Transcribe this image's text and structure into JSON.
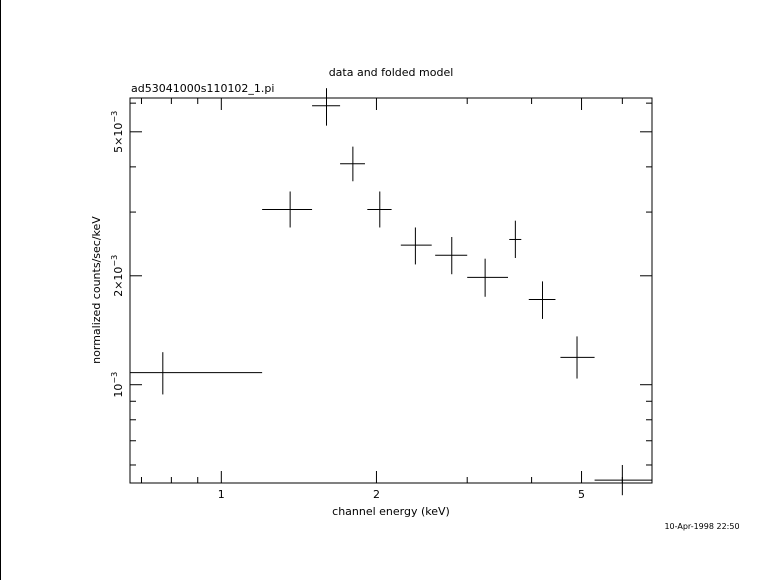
{
  "chart_data": {
    "type": "scatter",
    "title": "data and folded model",
    "subtitle": "ad53041000s110102_1.pi",
    "xlabel": "channel energy (keV)",
    "ylabel": "normalized counts/sec/keV",
    "x_scale": "log",
    "y_scale": "log",
    "xlim": [
      0.665,
      6.85
    ],
    "ylim": [
      0.000535,
      0.0062
    ],
    "x_ticks": [
      1,
      2,
      5
    ],
    "x_tick_labels": [
      "1",
      "2",
      "5"
    ],
    "y_ticks": [
      0.001,
      0.002,
      0.005
    ],
    "y_tick_labels": [
      {
        "base": "10",
        "exp": "−3",
        "mult": ""
      },
      {
        "base": "10",
        "exp": "−3",
        "mult": "2×"
      },
      {
        "base": "10",
        "exp": "−3",
        "mult": "5×"
      }
    ],
    "grid": false,
    "series": [
      {
        "points": [
          {
            "x": 0.77,
            "xlo": 0.665,
            "xhi": 1.2,
            "y": 0.00108,
            "ylo": 0.00094,
            "yhi": 0.00123
          },
          {
            "x": 1.36,
            "xlo": 1.2,
            "xhi": 1.5,
            "y": 0.00305,
            "ylo": 0.00272,
            "yhi": 0.00342
          },
          {
            "x": 1.6,
            "xlo": 1.5,
            "xhi": 1.7,
            "y": 0.0059,
            "ylo": 0.0052,
            "yhi": 0.0066
          },
          {
            "x": 1.8,
            "xlo": 1.7,
            "xhi": 1.9,
            "y": 0.00408,
            "ylo": 0.00365,
            "yhi": 0.00455
          },
          {
            "x": 2.03,
            "xlo": 1.92,
            "xhi": 2.14,
            "y": 0.00305,
            "ylo": 0.00272,
            "yhi": 0.00342
          },
          {
            "x": 2.38,
            "xlo": 2.23,
            "xhi": 2.56,
            "y": 0.00243,
            "ylo": 0.00215,
            "yhi": 0.00272
          },
          {
            "x": 2.8,
            "xlo": 2.6,
            "xhi": 3.0,
            "y": 0.00228,
            "ylo": 0.00202,
            "yhi": 0.00256
          },
          {
            "x": 3.25,
            "xlo": 3.0,
            "xhi": 3.6,
            "y": 0.00198,
            "ylo": 0.00175,
            "yhi": 0.00223
          },
          {
            "x": 3.72,
            "xlo": 3.62,
            "xhi": 3.82,
            "y": 0.00252,
            "ylo": 0.00224,
            "yhi": 0.00284
          },
          {
            "x": 4.2,
            "xlo": 3.95,
            "xhi": 4.45,
            "y": 0.00172,
            "ylo": 0.00152,
            "yhi": 0.00193
          },
          {
            "x": 4.9,
            "xlo": 4.55,
            "xhi": 5.3,
            "y": 0.00119,
            "ylo": 0.00104,
            "yhi": 0.00136
          },
          {
            "x": 6.0,
            "xlo": 5.3,
            "xhi": 6.85,
            "y": 0.000545,
            "ylo": 0.000495,
            "yhi": 0.0006
          }
        ]
      }
    ]
  },
  "footer": {
    "timestamp": "10-Apr-1998 22:50"
  }
}
